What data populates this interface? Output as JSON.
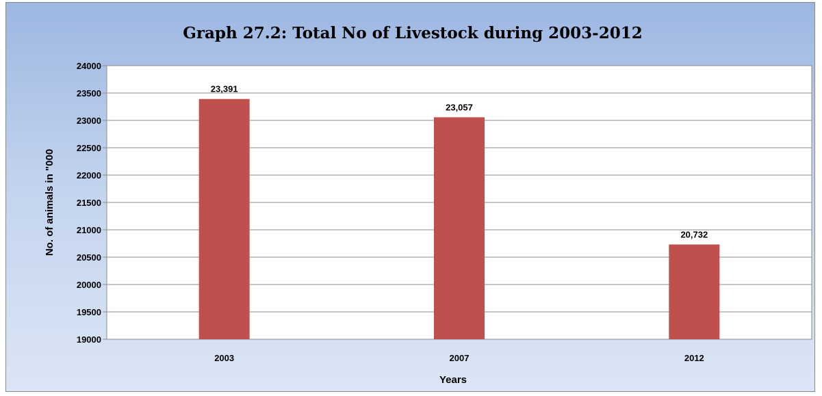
{
  "chart_data": {
    "type": "bar",
    "title": "Graph  27.2: Total No of Livestock during 2003-2012",
    "xlabel": "Years",
    "ylabel": "No. of animals in \"000",
    "categories": [
      "2003",
      "2007",
      "2012"
    ],
    "values": [
      23391,
      23057,
      20732
    ],
    "data_labels": [
      "23,391",
      "23,057",
      "20,732"
    ],
    "ylim": [
      19000,
      24000
    ],
    "yticks": [
      19000,
      19500,
      20000,
      20500,
      21000,
      21500,
      22000,
      22500,
      23000,
      23500,
      24000
    ],
    "grid": true,
    "legend": "none",
    "colors": {
      "bar": "#c0504d",
      "background_top": "#9db7e2",
      "background_bottom": "#dbe5f5",
      "plot_area": "#ffffff"
    }
  }
}
